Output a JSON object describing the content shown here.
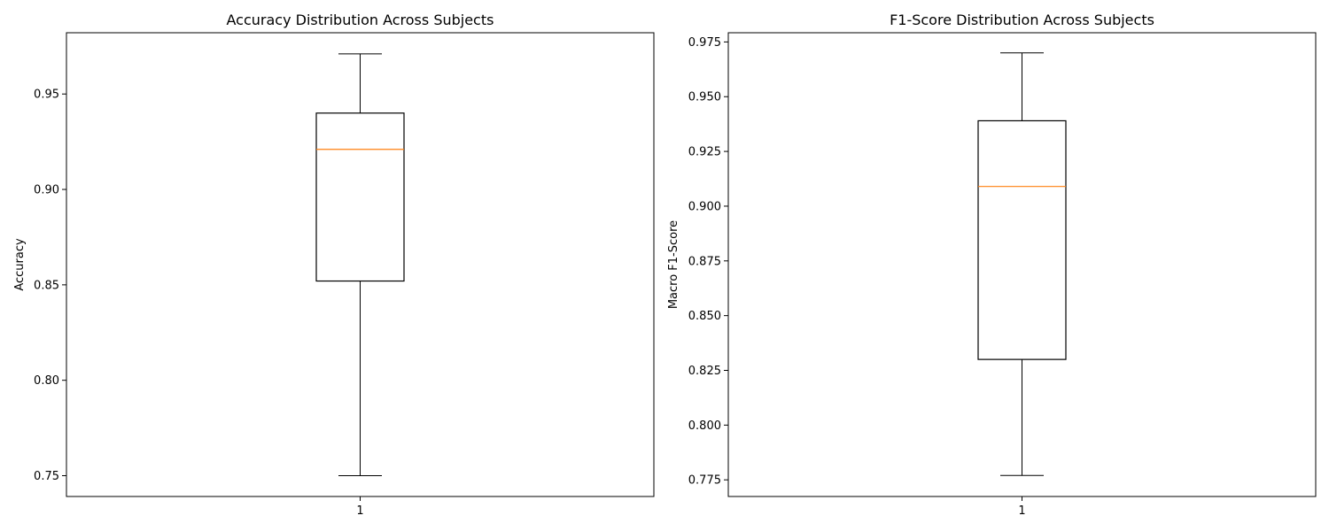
{
  "chart_data": [
    {
      "type": "box",
      "title": "Accuracy Distribution Across Subjects",
      "xlabel": "",
      "ylabel": "Accuracy",
      "categories": [
        "1"
      ],
      "ylim": [
        0.7391,
        0.9821
      ],
      "yticks": [
        0.75,
        0.8,
        0.85,
        0.9,
        0.95
      ],
      "ytick_labels": [
        "0.75",
        "0.80",
        "0.85",
        "0.90",
        "0.95"
      ],
      "box": {
        "whisker_low": 0.75,
        "q1": 0.852,
        "median": 0.921,
        "q3": 0.94,
        "whisker_high": 0.971
      },
      "grid": false,
      "colors": {
        "box": "#000000",
        "median": "#ff7f0e"
      }
    },
    {
      "type": "box",
      "title": "F1-Score Distribution Across Subjects",
      "xlabel": "",
      "ylabel": "Macro F1-Score",
      "categories": [
        "1"
      ],
      "ylim": [
        0.7674,
        0.9792
      ],
      "yticks": [
        0.775,
        0.8,
        0.825,
        0.85,
        0.875,
        0.9,
        0.925,
        0.95,
        0.975
      ],
      "ytick_labels": [
        "0.775",
        "0.800",
        "0.825",
        "0.850",
        "0.875",
        "0.900",
        "0.925",
        "0.950",
        "0.975"
      ],
      "box": {
        "whisker_low": 0.777,
        "q1": 0.83,
        "median": 0.909,
        "q3": 0.939,
        "whisker_high": 0.97
      },
      "grid": false,
      "colors": {
        "box": "#000000",
        "median": "#ff7f0e"
      }
    }
  ]
}
